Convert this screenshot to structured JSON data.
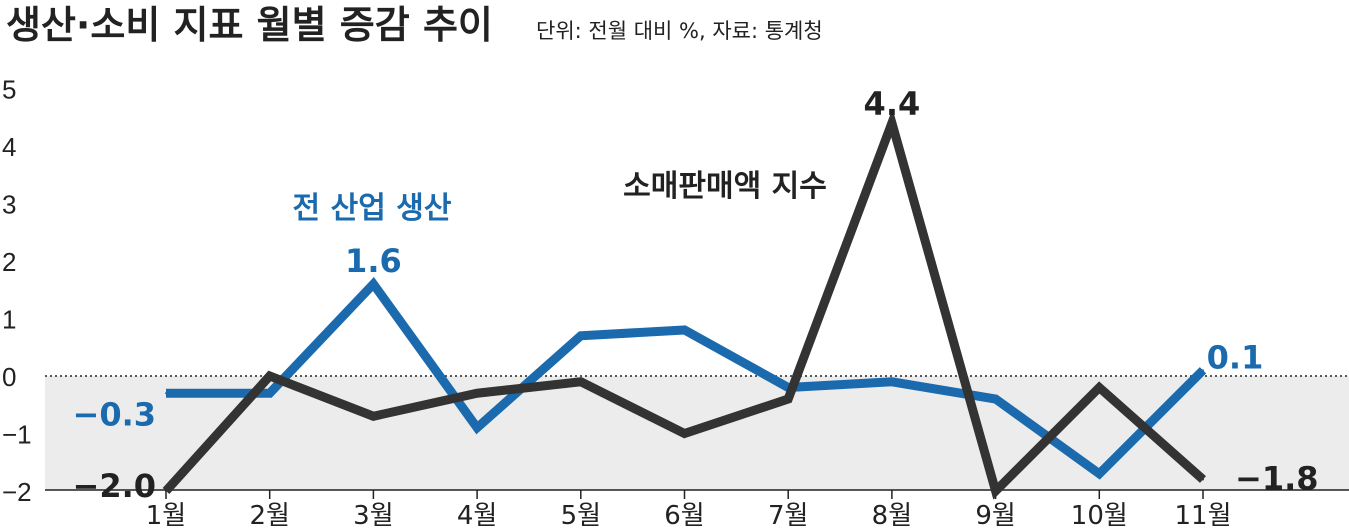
{
  "chart_data": {
    "type": "line",
    "title": "생산·소비 지표 월별 증감 추이",
    "subtitle": "단위: 전월 대비 %, 자료: 통계청",
    "categories": [
      "1월",
      "2월",
      "3월",
      "4월",
      "5월",
      "6월",
      "7월",
      "8월",
      "9월",
      "10월",
      "11월"
    ],
    "ylim": [
      -2,
      5
    ],
    "yticks": [
      "5",
      "4",
      "3",
      "2",
      "1",
      "0",
      "−1",
      "−2"
    ],
    "series": [
      {
        "name": "전 산업 생산",
        "color": "#1a6aad",
        "values": [
          -0.3,
          -0.3,
          1.6,
          -0.9,
          0.7,
          0.8,
          -0.2,
          -0.1,
          -0.4,
          -1.7,
          0.1
        ]
      },
      {
        "name": "소매판매액 지수",
        "color": "#333333",
        "values": [
          -2.0,
          0.0,
          -0.7,
          -0.3,
          -0.1,
          -1.0,
          -0.4,
          4.4,
          -2.0,
          -0.2,
          -1.8
        ]
      }
    ],
    "data_labels": [
      {
        "series": 0,
        "index": 0,
        "text": "−0.3"
      },
      {
        "series": 0,
        "index": 2,
        "text": "1.6"
      },
      {
        "series": 0,
        "index": 10,
        "text": "0.1"
      },
      {
        "series": 1,
        "index": 0,
        "text": "−2.0"
      },
      {
        "series": 1,
        "index": 7,
        "text": "4.4"
      },
      {
        "series": 1,
        "index": 10,
        "text": "−1.8"
      }
    ],
    "negative_shading": "#ececec",
    "grid": false
  }
}
